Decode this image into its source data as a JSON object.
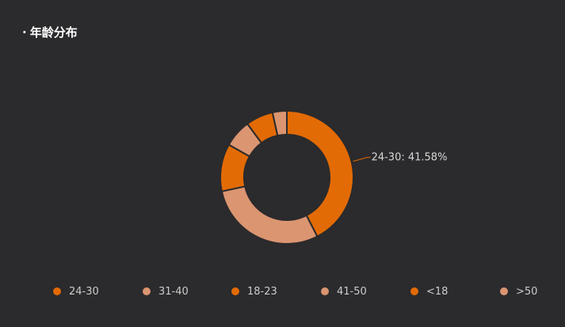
{
  "panel": {
    "title_prefix": "·",
    "title": "年龄分布"
  },
  "chart_data": {
    "type": "pie",
    "variant": "donut",
    "title": "年龄分布",
    "categories": [
      "24-30",
      "31-40",
      "18-23",
      "41-50",
      "<18",
      ">50"
    ],
    "values": [
      41.58,
      28.6,
      11.3,
      6.6,
      6.5,
      3.4
    ],
    "unit": "%",
    "colors": [
      "#e36b05",
      "#db9571",
      "#e36b05",
      "#db9571",
      "#e36b05",
      "#db9571"
    ],
    "slice_order": [
      "24-30",
      "31-40",
      "18-23",
      "41-50",
      "<18",
      ">50"
    ],
    "start_angle": "top",
    "direction": "clockwise",
    "labels": [
      {
        "category": "24-30",
        "text": "24-30: 41.58%"
      }
    ],
    "legend_position": "bottom"
  }
}
